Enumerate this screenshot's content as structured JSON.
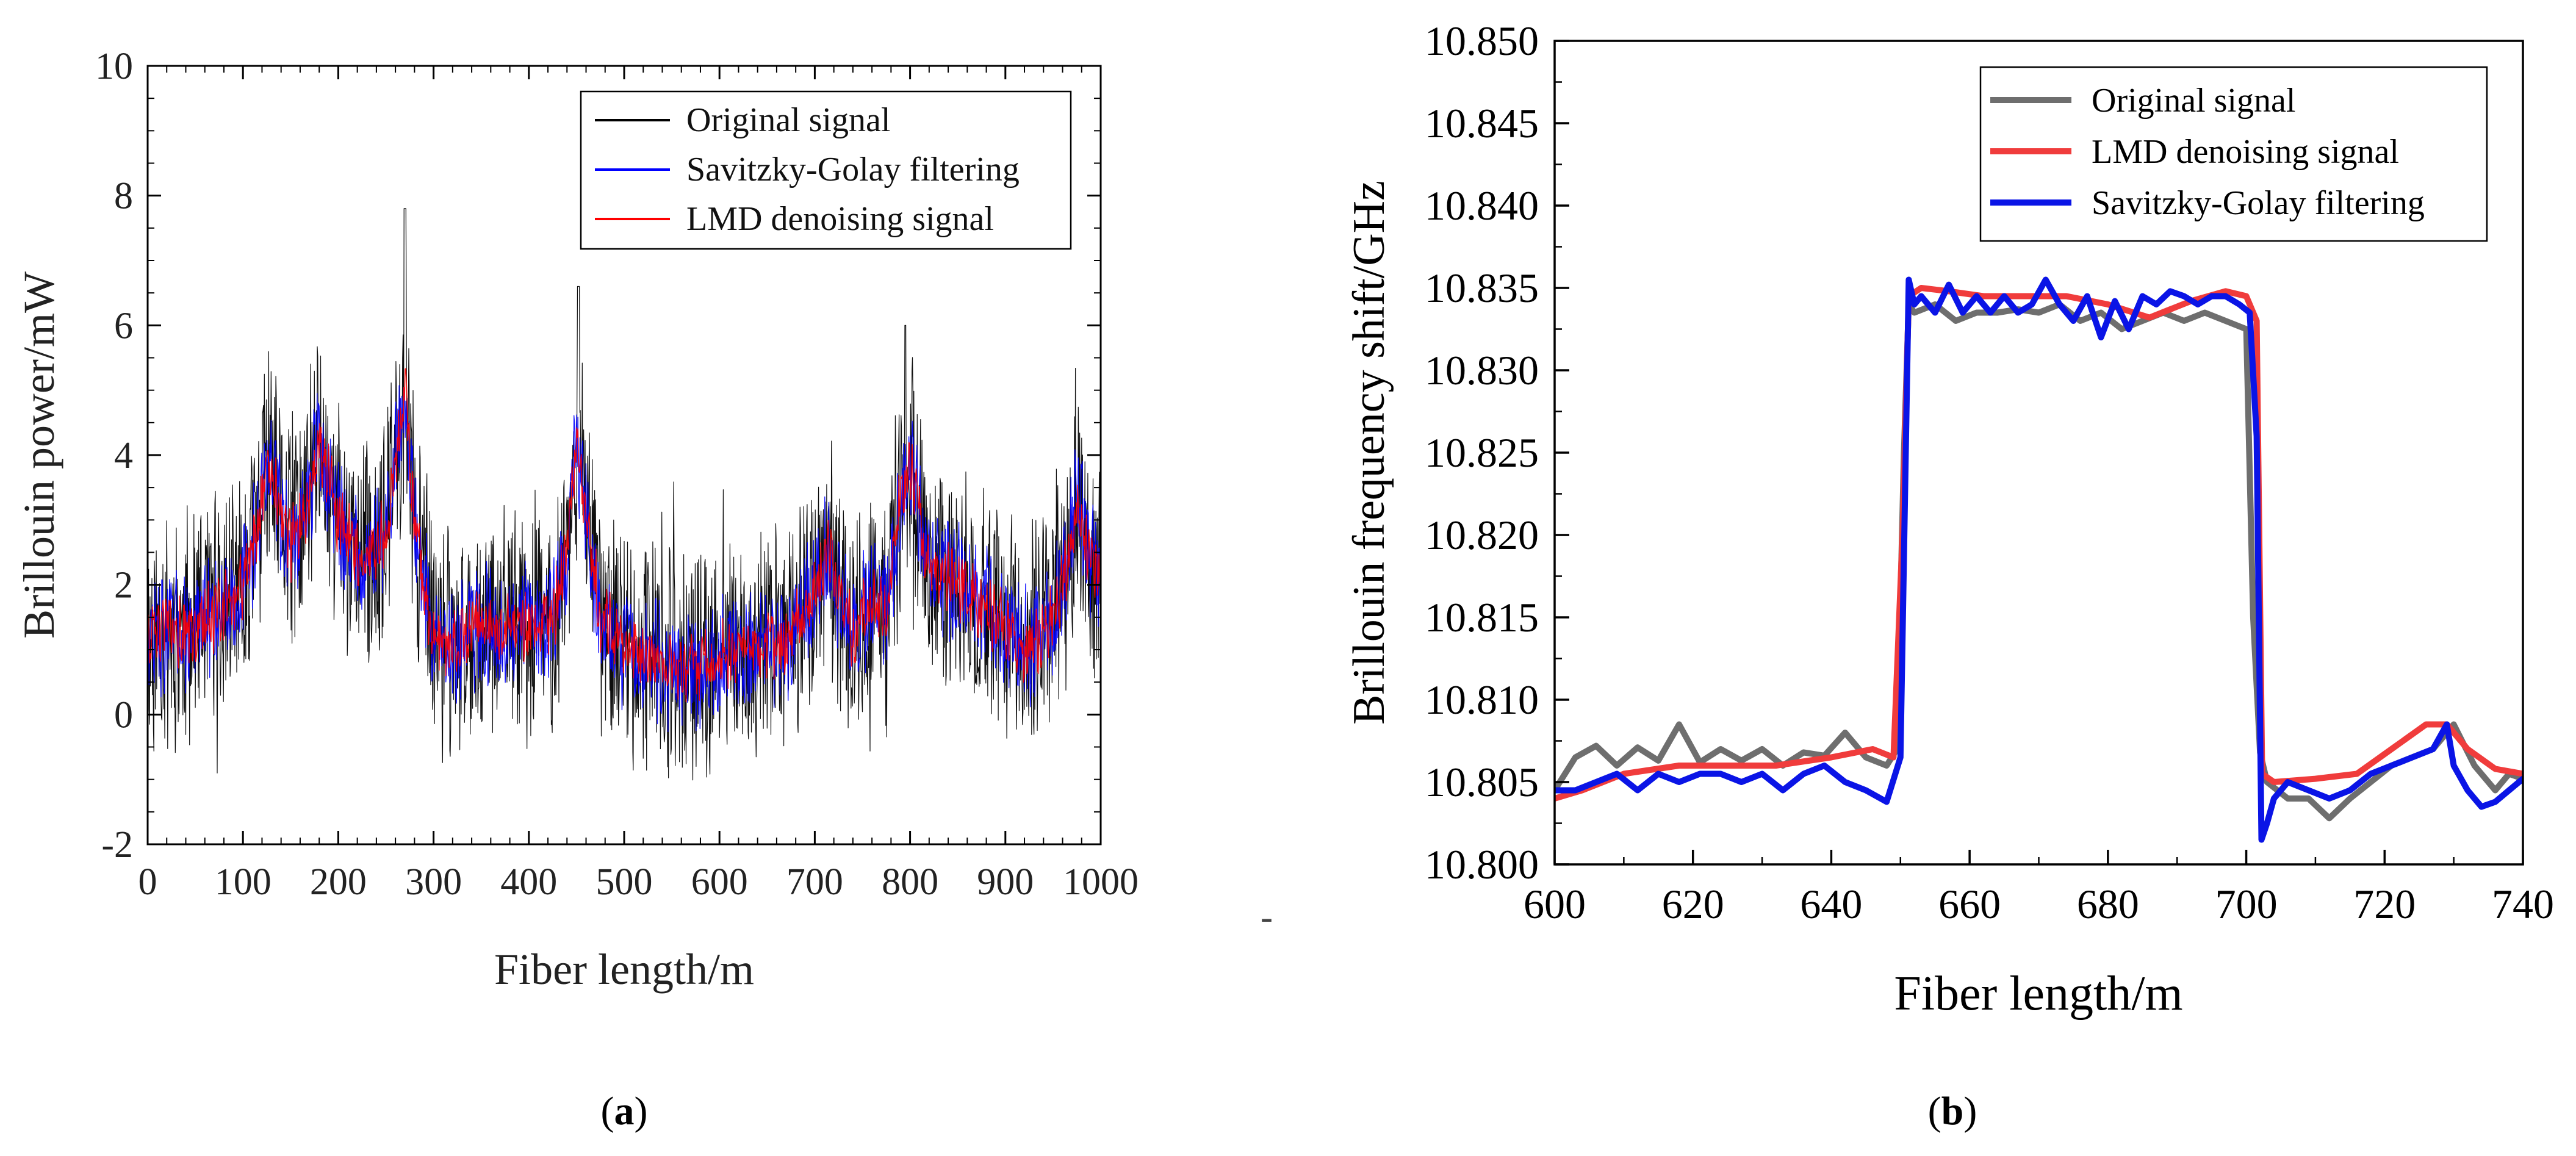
{
  "chart_data": [
    {
      "type": "line",
      "panel_label": "(a)",
      "panel_letter": "a",
      "xlabel": "Fiber length/m",
      "ylabel": "Brillouin power/mW",
      "xlim": [
        0,
        1000
      ],
      "ylim": [
        -2,
        10
      ],
      "x_ticks": [
        0,
        100,
        200,
        300,
        400,
        500,
        600,
        700,
        800,
        900,
        1000
      ],
      "x_tick_labels": [
        "0",
        "100",
        "200",
        "300",
        "400",
        "500",
        "600",
        "700",
        "800",
        "900",
        "1000"
      ],
      "y_ticks": [
        -2,
        0,
        2,
        4,
        6,
        8,
        10
      ],
      "y_tick_labels": [
        "-2",
        "0",
        "2",
        "4",
        "6",
        "8",
        "10"
      ],
      "legend_position": "top-right",
      "envelope_x": [
        0,
        25,
        50,
        75,
        100,
        115,
        125,
        135,
        150,
        165,
        180,
        190,
        200,
        215,
        230,
        250,
        262,
        270,
        280,
        300,
        325,
        350,
        375,
        400,
        425,
        440,
        450,
        460,
        475,
        500,
        525,
        550,
        575,
        600,
        625,
        650,
        675,
        700,
        715,
        725,
        740,
        760,
        775,
        790,
        800,
        815,
        830,
        850,
        875,
        900,
        925,
        950,
        965,
        975,
        985,
        1000
      ],
      "series": [
        {
          "name": "Original signal",
          "color": "#000000",
          "noise": 1.6,
          "width": 1.2,
          "values": [
            1.2,
            1.3,
            1.3,
            1.6,
            2.0,
            2.9,
            3.9,
            3.4,
            2.6,
            3.1,
            4.2,
            3.6,
            3.0,
            2.6,
            2.4,
            2.8,
            4.2,
            5.0,
            2.9,
            1.2,
            1.1,
            1.4,
            1.3,
            1.4,
            1.5,
            2.5,
            4.2,
            3.0,
            1.5,
            1.0,
            0.9,
            0.7,
            0.7,
            0.9,
            1.0,
            1.0,
            1.2,
            1.9,
            2.6,
            1.9,
            1.2,
            1.8,
            1.5,
            3.4,
            3.9,
            2.5,
            2.2,
            2.0,
            1.7,
            1.3,
            1.0,
            1.5,
            2.3,
            3.4,
            2.6,
            1.9
          ]
        },
        {
          "name": "Savitzky-Golay filtering",
          "color": "#0000ff",
          "noise": 0.85,
          "width": 1.4,
          "values": [
            1.2,
            1.3,
            1.3,
            1.6,
            2.0,
            2.9,
            3.9,
            3.4,
            2.6,
            3.1,
            4.2,
            3.6,
            3.0,
            2.6,
            2.4,
            2.8,
            4.2,
            5.0,
            2.9,
            1.2,
            1.1,
            1.4,
            1.3,
            1.4,
            1.5,
            2.5,
            4.2,
            3.0,
            1.5,
            1.0,
            0.9,
            0.7,
            0.7,
            0.9,
            1.0,
            1.0,
            1.2,
            1.9,
            2.6,
            1.9,
            1.2,
            1.8,
            1.5,
            3.4,
            3.9,
            2.5,
            2.2,
            2.0,
            1.7,
            1.3,
            1.0,
            1.5,
            2.3,
            3.4,
            2.6,
            1.9
          ]
        },
        {
          "name": "LMD denoising signal",
          "color": "#ff0000",
          "noise": 0.45,
          "width": 1.5,
          "values": [
            1.2,
            1.3,
            1.3,
            1.6,
            2.0,
            2.9,
            3.9,
            3.4,
            2.6,
            3.1,
            4.2,
            3.6,
            3.0,
            2.6,
            2.4,
            2.8,
            4.2,
            5.0,
            2.9,
            1.2,
            1.1,
            1.4,
            1.3,
            1.4,
            1.5,
            2.5,
            4.2,
            3.0,
            1.5,
            1.0,
            0.9,
            0.7,
            0.7,
            0.9,
            1.0,
            1.0,
            1.2,
            1.9,
            2.6,
            1.9,
            1.2,
            1.8,
            1.5,
            3.4,
            3.9,
            2.5,
            2.2,
            2.0,
            1.7,
            1.3,
            1.0,
            1.5,
            2.3,
            3.4,
            2.6,
            1.9
          ]
        }
      ],
      "legend_order": [
        0,
        1,
        2
      ]
    },
    {
      "type": "line",
      "panel_label": "(b)",
      "panel_letter": "b",
      "xlabel": "Fiber length/m",
      "ylabel": "Brillouin frequency shift/GHz",
      "xlim": [
        600,
        740
      ],
      "ylim": [
        10.8,
        10.85
      ],
      "x_ticks": [
        600,
        620,
        640,
        660,
        680,
        700,
        720,
        740
      ],
      "x_tick_labels": [
        "600",
        "620",
        "640",
        "660",
        "680",
        "700",
        "720",
        "740"
      ],
      "y_ticks": [
        10.8,
        10.805,
        10.81,
        10.815,
        10.82,
        10.825,
        10.83,
        10.835,
        10.84,
        10.845,
        10.85
      ],
      "y_tick_labels": [
        "10.800",
        "10.805",
        "10.810",
        "10.815",
        "10.820",
        "10.825",
        "10.830",
        "10.835",
        "10.840",
        "10.845",
        "10.850"
      ],
      "legend_position": "top-right",
      "series": [
        {
          "name": "Original signal",
          "color": "#6e6e6e",
          "width": 10,
          "x": [
            600,
            603,
            606,
            609,
            612,
            615,
            618,
            621,
            624,
            627,
            630,
            633,
            636,
            639,
            642,
            645,
            648,
            649.5,
            650.5,
            651.2,
            652,
            655,
            658,
            661,
            664,
            667,
            670,
            673,
            676,
            679,
            682,
            685,
            688,
            691,
            694,
            697,
            700,
            701,
            702,
            703,
            706,
            709,
            712,
            715,
            718,
            721,
            724,
            727,
            730,
            733,
            736,
            738,
            740
          ],
          "y": [
            10.8045,
            10.8065,
            10.8072,
            10.806,
            10.8071,
            10.8063,
            10.8085,
            10.8062,
            10.807,
            10.8063,
            10.807,
            10.806,
            10.8068,
            10.8066,
            10.808,
            10.8065,
            10.806,
            10.807,
            10.825,
            10.834,
            10.8335,
            10.834,
            10.833,
            10.8335,
            10.8335,
            10.8337,
            10.8335,
            10.834,
            10.833,
            10.8335,
            10.8325,
            10.833,
            10.8335,
            10.833,
            10.8335,
            10.833,
            10.8325,
            10.815,
            10.8068,
            10.805,
            10.804,
            10.804,
            10.8028,
            10.804,
            10.805,
            10.806,
            10.8065,
            10.807,
            10.8085,
            10.806,
            10.8045,
            10.8055,
            10.8052
          ]
        },
        {
          "name": "LMD denoising signal",
          "color": "#f03c3c",
          "width": 10,
          "x": [
            600,
            604,
            610,
            618,
            625,
            632,
            640,
            646,
            649,
            650.3,
            651.2,
            653,
            657,
            662,
            668,
            674,
            680,
            686,
            692,
            697,
            700,
            701.5,
            702.3,
            704,
            710,
            716,
            721,
            726,
            729,
            732,
            736,
            740
          ],
          "y": [
            10.804,
            10.8045,
            10.8055,
            10.806,
            10.806,
            10.806,
            10.8065,
            10.807,
            10.8065,
            10.82,
            10.8345,
            10.835,
            10.8348,
            10.8345,
            10.8345,
            10.8345,
            10.834,
            10.8332,
            10.8342,
            10.8348,
            10.8345,
            10.833,
            10.8055,
            10.805,
            10.8052,
            10.8055,
            10.807,
            10.8085,
            10.8085,
            10.807,
            10.8058,
            10.8055
          ]
        },
        {
          "name": "Savitzky-Golay filtering",
          "color": "#0a14e6",
          "width": 10,
          "x": [
            600,
            603,
            606,
            609,
            612,
            615,
            618,
            621,
            624,
            627,
            630,
            633,
            636,
            639,
            642,
            645,
            648,
            650,
            651.2,
            652,
            653,
            655,
            657,
            659,
            661,
            663,
            665,
            667,
            669,
            671,
            673,
            675,
            677,
            679,
            681,
            683,
            685,
            687,
            689,
            691,
            693,
            695,
            697,
            699,
            700.5,
            701.5,
            702.2,
            703,
            704,
            706,
            709,
            712,
            715,
            718,
            721,
            724,
            727,
            729,
            730,
            732,
            734,
            736,
            738,
            740
          ],
          "y": [
            10.8045,
            10.8045,
            10.805,
            10.8055,
            10.8045,
            10.8055,
            10.805,
            10.8055,
            10.8055,
            10.805,
            10.8055,
            10.8045,
            10.8055,
            10.806,
            10.805,
            10.8045,
            10.8038,
            10.8065,
            10.8355,
            10.834,
            10.8345,
            10.8335,
            10.8352,
            10.8335,
            10.8345,
            10.8335,
            10.8345,
            10.8335,
            10.834,
            10.8355,
            10.834,
            10.833,
            10.8345,
            10.832,
            10.8342,
            10.8325,
            10.8345,
            10.834,
            10.8348,
            10.8345,
            10.834,
            10.8345,
            10.8345,
            10.834,
            10.8335,
            10.826,
            10.8015,
            10.8025,
            10.804,
            10.805,
            10.8045,
            10.804,
            10.8045,
            10.8055,
            10.806,
            10.8065,
            10.807,
            10.8085,
            10.806,
            10.8045,
            10.8035,
            10.8038,
            10.8045,
            10.8052
          ]
        }
      ],
      "legend_order": [
        0,
        1,
        2
      ]
    }
  ],
  "stray_mark": "-"
}
